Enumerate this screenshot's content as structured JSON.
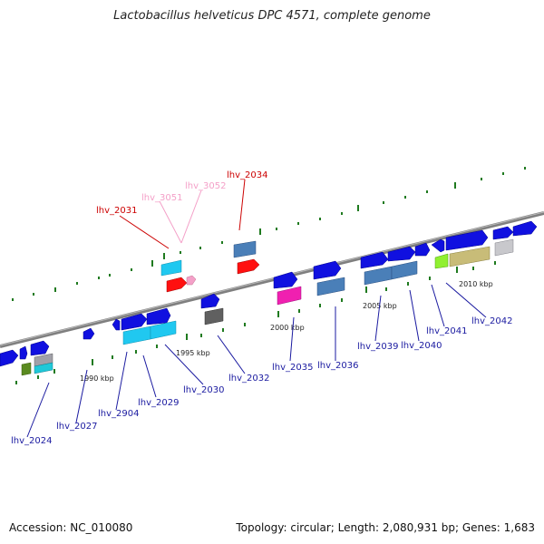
{
  "title": "Lactobacillus helveticus DPC 4571, complete genome",
  "accession": "Accession: NC_010080",
  "summary": "Topology: circular; Length: 2,080,931 bp; Genes: 1,683",
  "colors": {
    "label_blue": "#1a1aa0",
    "label_red": "#cc0000",
    "label_pink": "#f4a0c8",
    "backbone": "#8a8a8a",
    "tick": "#1f7a1f"
  },
  "scale_labels": [
    "1990 kbp",
    "1995 kbp",
    "2000 kbp",
    "2005 kbp",
    "2010 kbp"
  ],
  "gene_labels": [
    {
      "id": "lhv_2024",
      "text": "lhv_2024",
      "color": "blue"
    },
    {
      "id": "lhv_2027",
      "text": "lhv_2027",
      "color": "blue"
    },
    {
      "id": "lhv_2904",
      "text": "lhv_2904",
      "color": "blue"
    },
    {
      "id": "lhv_2029",
      "text": "lhv_2029",
      "color": "blue"
    },
    {
      "id": "lhv_2030",
      "text": "lhv_2030",
      "color": "blue"
    },
    {
      "id": "lhv_2031",
      "text": "lhv_2031",
      "color": "red"
    },
    {
      "id": "lhv_3051",
      "text": "lhv_3051",
      "color": "pink"
    },
    {
      "id": "lhv_3052",
      "text": "lhv_3052",
      "color": "pink"
    },
    {
      "id": "lhv_2034",
      "text": "lhv_2034",
      "color": "red"
    },
    {
      "id": "lhv_2032",
      "text": "lhv_2032",
      "color": "blue"
    },
    {
      "id": "lhv_2035",
      "text": "lhv_2035",
      "color": "blue"
    },
    {
      "id": "lhv_2036",
      "text": "lhv_2036",
      "color": "blue"
    },
    {
      "id": "lhv_2039",
      "text": "lhv_2039",
      "color": "blue"
    },
    {
      "id": "lhv_2040",
      "text": "lhv_2040",
      "color": "blue"
    },
    {
      "id": "lhv_2041",
      "text": "lhv_2041",
      "color": "blue"
    },
    {
      "id": "lhv_2042",
      "text": "lhv_2042",
      "color": "blue"
    }
  ]
}
